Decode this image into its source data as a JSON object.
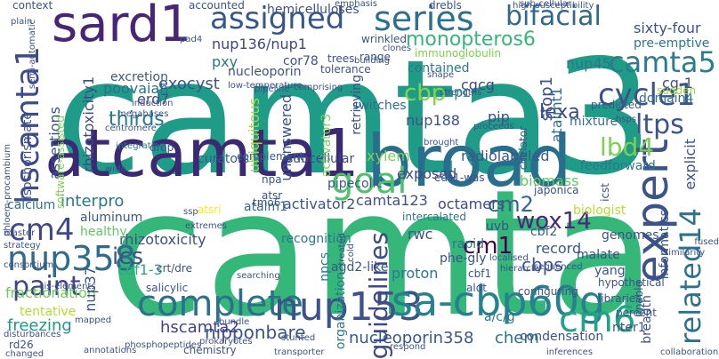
{
  "words": [
    {
      "text": "camta3",
      "color": "#1f9c88",
      "vertical": false
    },
    {
      "text": "camta",
      "color": "#35b779",
      "vertical": false
    },
    {
      "text": "atcamta1",
      "color": "#3b2a73",
      "vertical": false
    },
    {
      "text": "broad",
      "color": "#2a6e8e",
      "vertical": false
    },
    {
      "text": "sard1",
      "color": "#482677",
      "vertical": false
    },
    {
      "text": "complete",
      "color": "#2d708e",
      "vertical": false
    },
    {
      "text": "nup153",
      "color": "#3b528b",
      "vertical": false
    },
    {
      "text": "sa-cbp60g",
      "color": "#26828e",
      "vertical": false
    },
    {
      "text": "assigned",
      "color": "#39568c",
      "vertical": false
    },
    {
      "text": "series",
      "color": "#2d708e",
      "vertical": false
    },
    {
      "text": "bifacial",
      "color": "#31688e",
      "vertical": false
    },
    {
      "text": "expert",
      "color": "#3b528b",
      "vertical": true
    },
    {
      "text": "hscamta1",
      "color": "#3e4a89",
      "vertical": true
    },
    {
      "text": "cm4",
      "color": "#3e4989",
      "vertical": false
    },
    {
      "text": "nup358",
      "color": "#2f6b8e",
      "vertical": false
    },
    {
      "text": "paint",
      "color": "#414487",
      "vertical": false
    },
    {
      "text": "goal",
      "color": "#4ec36b",
      "vertical": false
    },
    {
      "text": "cm6",
      "color": "#20a386",
      "vertical": false
    },
    {
      "text": "monopteros6",
      "color": "#35b779",
      "vertical": false
    },
    {
      "text": "camta5",
      "color": "#287d8e",
      "vertical": false
    },
    {
      "text": "ltps",
      "color": "#39568c",
      "vertical": false
    },
    {
      "text": "cycle1",
      "color": "#3b528b",
      "vertical": false
    },
    {
      "text": "related14",
      "color": "#2c728e",
      "vertical": true
    },
    {
      "text": "lbd4",
      "color": "#7ad151",
      "vertical": false
    },
    {
      "text": "cbp",
      "color": "#84d44b",
      "vertical": false
    },
    {
      "text": "lexa",
      "color": "#3e4a89",
      "vertical": false
    },
    {
      "text": "thirds",
      "color": "#2a788e",
      "vertical": false
    },
    {
      "text": "ics",
      "color": "#3b528b",
      "vertical": false
    },
    {
      "text": "wox14",
      "color": "#482878",
      "vertical": false
    },
    {
      "text": "cm1",
      "color": "#440154",
      "vertical": false
    },
    {
      "text": "cm2",
      "color": "#31688e",
      "vertical": false
    },
    {
      "text": "nipponbare",
      "color": "#3b528b",
      "vertical": false
    },
    {
      "text": "hscamta2",
      "color": "#404387",
      "vertical": false
    },
    {
      "text": "nucleoporin358",
      "color": "#38588c",
      "vertical": false
    },
    {
      "text": "chem",
      "color": "#2c728e",
      "vertical": false
    },
    {
      "text": "freezing",
      "color": "#1f968b",
      "vertical": false
    },
    {
      "text": "tentative",
      "color": "#b5de2b",
      "vertical": false
    },
    {
      "text": "fractionation",
      "color": "#6ccd5a",
      "vertical": false
    },
    {
      "text": "calcium",
      "color": "#2e6f8e",
      "vertical": false
    },
    {
      "text": "interpro",
      "color": "#2a788e",
      "vertical": false
    },
    {
      "text": "exocyst",
      "color": "#39568c",
      "vertical": false
    },
    {
      "text": "poovaiah",
      "color": "#2d708e",
      "vertical": false
    },
    {
      "text": "erd7",
      "color": "#3e4a89",
      "vertical": false
    },
    {
      "text": "nup136/nup1",
      "color": "#404588",
      "vertical": false
    },
    {
      "text": "radiolabeled",
      "color": "#38598c",
      "vertical": false
    },
    {
      "text": "feedforward",
      "color": "#2a788e",
      "vertical": false
    },
    {
      "text": "biomass",
      "color": "#5ec962",
      "vertical": false
    },
    {
      "text": "camta123",
      "color": "#3b528b",
      "vertical": false
    },
    {
      "text": "octamers",
      "color": "#3f4889",
      "vertical": false
    },
    {
      "text": "activator2",
      "color": "#3a548c",
      "vertical": false
    },
    {
      "text": "atalm1",
      "color": "#2f6b8e",
      "vertical": false
    },
    {
      "text": "recognition",
      "color": "#2a788e",
      "vertical": false
    },
    {
      "text": "guidelines",
      "color": "#3e4989",
      "vertical": true
    },
    {
      "text": "rhizotoxicity",
      "color": "#3d4d8a",
      "vertical": false
    },
    {
      "text": "cbf1-3",
      "color": "#29af7f",
      "vertical": false
    },
    {
      "text": "nup188",
      "color": "#3b528b",
      "vertical": false
    },
    {
      "text": "npc",
      "color": "#26828e",
      "vertical": false
    },
    {
      "text": "nup45",
      "color": "#2a788e",
      "vertical": false
    },
    {
      "text": "cg-1",
      "color": "#3b528b",
      "vertical": false
    },
    {
      "text": "domain4",
      "color": "#2d708e",
      "vertical": false
    },
    {
      "text": "cbps",
      "color": "#3b528b",
      "vertical": false
    },
    {
      "text": "record",
      "color": "#38588c",
      "vertical": false
    },
    {
      "text": "cbf2",
      "color": "#355f8d",
      "vertical": false
    },
    {
      "text": "proton",
      "color": "#2a788e",
      "vertical": false
    },
    {
      "text": "aluminum",
      "color": "#38598c",
      "vertical": false
    },
    {
      "text": "healthy",
      "color": "#5ec962",
      "vertical": false
    },
    {
      "text": "xylem",
      "color": "#7ad151",
      "vertical": false
    },
    {
      "text": "exposed",
      "color": "#3e4a89",
      "vertical": false
    },
    {
      "text": "pipecolic",
      "color": "#39568c",
      "vertical": false
    },
    {
      "text": "subcellular",
      "color": "#3e4989",
      "vertical": false
    },
    {
      "text": "ubiquitous",
      "color": "#9fda3a",
      "vertical": true
    },
    {
      "text": "unanswered",
      "color": "#3a548c",
      "vertical": true
    },
    {
      "text": "activator3",
      "color": "#7ad151",
      "vertical": true
    },
    {
      "text": "stop1",
      "color": "#3b528b",
      "vertical": true
    },
    {
      "text": "atalmt1",
      "color": "#2d708e",
      "vertical": true
    },
    {
      "text": "cgcg",
      "color": "#3e4989",
      "vertical": false
    },
    {
      "text": "switches",
      "color": "#2d708e",
      "vertical": false
    },
    {
      "text": "contained",
      "color": "#2a788e",
      "vertical": false
    },
    {
      "text": "hemicelluloses",
      "color": "#3b528b",
      "vertical": false
    },
    {
      "text": "sixty-four",
      "color": "#3b528b",
      "vertical": false
    },
    {
      "text": "pre-emptive",
      "color": "#2a788e",
      "vertical": false
    },
    {
      "text": "assertions",
      "color": "#3b528b",
      "vertical": true
    },
    {
      "text": "rhizotoxicity1",
      "color": "#3e4989",
      "vertical": true
    },
    {
      "text": "cor78",
      "color": "#3b528b",
      "vertical": false
    },
    {
      "text": "pxy",
      "color": "#2a788e",
      "vertical": false
    },
    {
      "text": "nucleoporin",
      "color": "#3b528b",
      "vertical": false
    },
    {
      "text": "excretion",
      "color": "#38598c",
      "vertical": false
    },
    {
      "text": "immunoglobulin",
      "color": "#7ad151",
      "vertical": false
    },
    {
      "text": "mixture",
      "color": "#2d708e",
      "vertical": false
    },
    {
      "text": "predicted",
      "color": "#38598c",
      "vertical": false
    },
    {
      "text": "pip",
      "color": "#3b528b",
      "vertical": false
    },
    {
      "text": "retrieving",
      "color": "#3b528b",
      "vertical": true
    },
    {
      "text": "curators",
      "color": "#38598c",
      "vertical": false
    },
    {
      "text": "complement",
      "color": "#38598c",
      "vertical": false
    },
    {
      "text": "explicit",
      "color": "#3b528b",
      "vertical": true
    },
    {
      "text": "informatics",
      "color": "#3b528b",
      "vertical": true
    },
    {
      "text": "genomes",
      "color": "#3b528b",
      "vertical": false
    },
    {
      "text": "japonica",
      "color": "#3b528b",
      "vertical": false
    },
    {
      "text": "biologist",
      "color": "#b5de2b",
      "vertical": false
    },
    {
      "text": "rwc",
      "color": "#3b528b",
      "vertical": false
    },
    {
      "text": "uvb",
      "color": "#3b528b",
      "vertical": false
    },
    {
      "text": "malate",
      "color": "#3b528b",
      "vertical": false
    },
    {
      "text": "yang",
      "color": "#3b528b",
      "vertical": false
    },
    {
      "text": "cbf1",
      "color": "#3b528b",
      "vertical": false
    },
    {
      "text": "aldt",
      "color": "#3b528b",
      "vertical": false
    },
    {
      "text": "agd2-like",
      "color": "#3b528b",
      "vertical": false
    },
    {
      "text": "npcs",
      "color": "#2a788e",
      "vertical": true
    },
    {
      "text": "organization",
      "color": "#2a788e",
      "vertical": true
    },
    {
      "text": "phe-gly",
      "color": "#3b528b",
      "vertical": false
    },
    {
      "text": "a/c/g",
      "color": "#2a788e",
      "vertical": false
    },
    {
      "text": "nter1",
      "color": "#3b528b",
      "vertical": false
    },
    {
      "text": "condensation",
      "color": "#3b528b",
      "vertical": false
    },
    {
      "text": "breadth",
      "color": "#3b528b",
      "vertical": true
    },
    {
      "text": "nup37",
      "color": "#3b528b",
      "vertical": true
    },
    {
      "text": "salicylic",
      "color": "#3b528b",
      "vertical": false
    },
    {
      "text": "crt/dre",
      "color": "#3b528b",
      "vertical": false
    },
    {
      "text": "rd26",
      "color": "#3b528b",
      "vertical": false
    },
    {
      "text": "tmo6",
      "color": "#3b528b",
      "vertical": false
    },
    {
      "text": "atsri",
      "color": "#fde725",
      "vertical": false
    },
    {
      "text": "ssp",
      "color": "#3b528b",
      "vertical": false
    },
    {
      "text": "npa",
      "color": "#3b528b",
      "vertical": false
    },
    {
      "text": "atsr",
      "color": "#3b528b",
      "vertical": false
    },
    {
      "text": "intercalated",
      "color": "#2a788e",
      "vertical": false
    },
    {
      "text": "eds1-was",
      "color": "#3b528b",
      "vertical": false
    },
    {
      "text": "icst",
      "color": "#3b528b",
      "vertical": true
    },
    {
      "text": "annotations",
      "color": "#3b528b",
      "vertical": false
    },
    {
      "text": "chemistry",
      "color": "#3b528b",
      "vertical": false
    },
    {
      "text": "context",
      "color": "#3b528b",
      "vertical": false
    },
    {
      "text": "accounted",
      "color": "#3b528b",
      "vertical": false
    },
    {
      "text": "wrinkled",
      "color": "#3b528b",
      "vertical": false
    },
    {
      "text": "drebls",
      "color": "#3b528b",
      "vertical": false
    },
    {
      "text": "sub-cellular",
      "color": "#3b528b",
      "vertical": false
    },
    {
      "text": "range",
      "color": "#3b528b",
      "vertical": false
    },
    {
      "text": "tolerance",
      "color": "#3b528b",
      "vertical": false
    },
    {
      "text": "trees",
      "color": "#3b528b",
      "vertical": false
    },
    {
      "text": "clones",
      "color": "#3b528b",
      "vertical": false
    },
    {
      "text": "pipeline",
      "color": "#3b528b",
      "vertical": false
    },
    {
      "text": "comprising",
      "color": "#3b528b",
      "vertical": false
    },
    {
      "text": "induction",
      "color": "#3b528b",
      "vertical": false
    },
    {
      "text": "megabases",
      "color": "#3b528b",
      "vertical": false
    },
    {
      "text": "centromere",
      "color": "#3b528b",
      "vertical": false
    },
    {
      "text": "integrating",
      "color": "#2a788e",
      "vertical": false
    },
    {
      "text": "software-assisted",
      "color": "#7ad151",
      "vertical": true
    },
    {
      "text": "isochorismate",
      "color": "#3b528b",
      "vertical": true
    },
    {
      "text": "drop",
      "color": "#3b528b",
      "vertical": false
    },
    {
      "text": "building",
      "color": "#3b528b",
      "vertical": false
    },
    {
      "text": "shape",
      "color": "#3b528b",
      "vertical": false
    },
    {
      "text": "strengths",
      "color": "#3b528b",
      "vertical": false
    },
    {
      "text": "proceeds",
      "color": "#3b528b",
      "vertical": false
    },
    {
      "text": "chelator",
      "color": "#3b528b",
      "vertical": true
    },
    {
      "text": "hsps",
      "color": "#3b528b",
      "vertical": false
    },
    {
      "text": "sudden",
      "color": "#9fda3a",
      "vertical": false
    },
    {
      "text": "mapped",
      "color": "#3b528b",
      "vertical": false
    },
    {
      "text": "disturbances",
      "color": "#3b528b",
      "vertical": false
    },
    {
      "text": "cis-elements",
      "color": "#3b528b",
      "vertical": false
    },
    {
      "text": "consortium",
      "color": "#3b528b",
      "vertical": false
    },
    {
      "text": "phosphopeptides",
      "color": "#3b528b",
      "vertical": false
    },
    {
      "text": "bundle",
      "color": "#3b528b",
      "vertical": false
    },
    {
      "text": "searching",
      "color": "#3b528b",
      "vertical": false
    },
    {
      "text": "prokaryotes",
      "color": "#3b528b",
      "vertical": false
    },
    {
      "text": "transporter",
      "color": "#3b528b",
      "vertical": false
    },
    {
      "text": "configuring",
      "color": "#3b528b",
      "vertical": false
    },
    {
      "text": "libraries",
      "color": "#3b528b",
      "vertical": false
    },
    {
      "text": "percent",
      "color": "#3b528b",
      "vertical": false
    },
    {
      "text": "hypothetical",
      "color": "#3b528b",
      "vertical": false
    },
    {
      "text": "localised",
      "color": "#3b528b",
      "vertical": false
    },
    {
      "text": "sequenced",
      "color": "#3b528b",
      "vertical": false
    },
    {
      "text": "fused",
      "color": "#3b528b",
      "vertical": false
    },
    {
      "text": "enable",
      "color": "#3b528b",
      "vertical": true
    },
    {
      "text": "inferences",
      "color": "#3b528b",
      "vertical": false
    },
    {
      "text": "changed",
      "color": "#3b528b",
      "vertical": false
    },
    {
      "text": "strategy",
      "color": "#3b528b",
      "vertical": false
    },
    {
      "text": "master",
      "color": "#3b528b",
      "vertical": false
    },
    {
      "text": "wide",
      "color": "#3b528b",
      "vertical": false
    },
    {
      "text": "phloem-procambium",
      "color": "#3b528b",
      "vertical": true
    },
    {
      "text": "plain",
      "color": "#3b528b",
      "vertical": false
    },
    {
      "text": "semi-automatic",
      "color": "#3b528b",
      "vertical": true
    },
    {
      "text": "emphasis",
      "color": "#3b528b",
      "vertical": false
    },
    {
      "text": "high-susceptibility",
      "color": "#3b528b",
      "vertical": false
    },
    {
      "text": "pad4",
      "color": "#3b528b",
      "vertical": false
    },
    {
      "text": "brought",
      "color": "#3b528b",
      "vertical": false
    },
    {
      "text": "rapid",
      "color": "#2a788e",
      "vertical": false
    },
    {
      "text": "treated",
      "color": "#3b528b",
      "vertical": true
    },
    {
      "text": "cold",
      "color": "#3b528b",
      "vertical": true
    },
    {
      "text": "low-temperature",
      "color": "#3b528b",
      "vertical": false
    },
    {
      "text": "extremes",
      "color": "#3b528b",
      "vertical": false
    },
    {
      "text": "stunted",
      "color": "#3b528b",
      "vertical": false
    },
    {
      "text": "similarity",
      "color": "#3b528b",
      "vertical": false
    },
    {
      "text": "hierarchy",
      "color": "#3b528b",
      "vertical": false
    },
    {
      "text": "collaboration",
      "color": "#3b528b",
      "vertical": false
    },
    {
      "text": "respond",
      "color": "#3b528b",
      "vertical": false
    }
  ]
}
